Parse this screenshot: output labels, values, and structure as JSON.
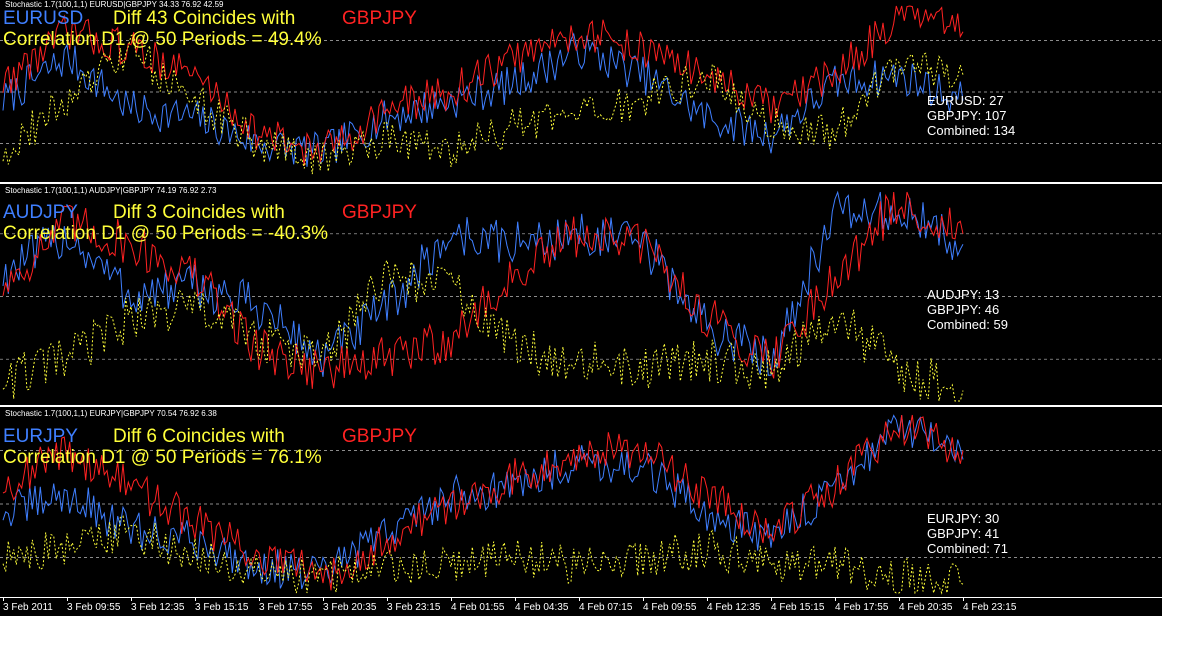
{
  "colors": {
    "base": "#3f7fff",
    "compare": "#ff2222",
    "diff": "#ffff3a",
    "grid": "#bbbbbb",
    "background": "#000000"
  },
  "panes": [
    {
      "indicator_title": "Stochastic 1.7(100,1,1) EURUSD|GBPJPY 34.33 76.92 42.59",
      "symbol": "EURUSD",
      "diff_text": "Diff 43 Coincides with",
      "compare_symbol": "GBPJPY",
      "correlation_text": "Correlation D1 @ 50 Periods = 49.4%",
      "stats": [
        "EURUSD: 27",
        "GBPJPY: 107",
        "Combined: 134"
      ]
    },
    {
      "indicator_title": "Stochastic 1.7(100,1,1) AUDJPY|GBPJPY 74.19 76.92 2.73",
      "symbol": "AUDJPY",
      "diff_text": "Diff 3 Coincides with",
      "compare_symbol": "GBPJPY",
      "correlation_text": "Correlation D1 @ 50 Periods = -40.3%",
      "stats": [
        "AUDJPY: 13",
        "GBPJPY: 46",
        "Combined: 59"
      ]
    },
    {
      "indicator_title": "Stochastic 1.7(100,1,1) EURJPY|GBPJPY 70.54 76.92 6.38",
      "symbol": "EURJPY",
      "diff_text": "Diff 6 Coincides with",
      "compare_symbol": "GBPJPY",
      "correlation_text": "Correlation D1 @ 50 Periods = 76.1%",
      "stats": [
        "EURJPY: 30",
        "GBPJPY: 41",
        "Combined: 71"
      ]
    }
  ],
  "chart_data": [
    {
      "type": "line",
      "x": [
        "3 Feb 2011",
        "3 Feb 09:55",
        "3 Feb 12:35",
        "3 Feb 15:15",
        "3 Feb 17:55",
        "3 Feb 20:35",
        "3 Feb 23:15",
        "4 Feb 01:55",
        "4 Feb 04:35",
        "4 Feb 07:15",
        "4 Feb 09:55",
        "4 Feb 12:35",
        "4 Feb 15:15",
        "4 Feb 17:55",
        "4 Feb 20:35",
        "4 Feb 23:15"
      ],
      "ylim": [
        0,
        100
      ],
      "series": [
        {
          "name": "EURUSD",
          "values": [
            45,
            70,
            40,
            35,
            20,
            15,
            35,
            45,
            55,
            75,
            60,
            35,
            25,
            55,
            60,
            45
          ]
        },
        {
          "name": "GBPJPY",
          "values": [
            55,
            85,
            75,
            60,
            25,
            15,
            40,
            50,
            70,
            85,
            75,
            60,
            40,
            60,
            95,
            85
          ]
        },
        {
          "name": "",
          "values": [
            15,
            45,
            75,
            45,
            20,
            10,
            25,
            15,
            30,
            35,
            45,
            60,
            30,
            25,
            70,
            60
          ]
        }
      ]
    },
    {
      "type": "line",
      "x": [
        "3 Feb 2011",
        "3 Feb 09:55",
        "3 Feb 12:35",
        "3 Feb 15:15",
        "3 Feb 17:55",
        "3 Feb 20:35",
        "3 Feb 23:15",
        "4 Feb 01:55",
        "4 Feb 04:35",
        "4 Feb 07:15",
        "4 Feb 09:55",
        "4 Feb 12:35",
        "4 Feb 15:15",
        "4 Feb 17:55",
        "4 Feb 20:35",
        "4 Feb 23:15"
      ],
      "ylim": [
        0,
        100
      ],
      "series": [
        {
          "name": "AUDJPY",
          "values": [
            60,
            80,
            50,
            55,
            45,
            20,
            45,
            80,
            75,
            80,
            75,
            35,
            20,
            90,
            90,
            75
          ]
        },
        {
          "name": "GBPJPY",
          "values": [
            55,
            85,
            75,
            60,
            25,
            15,
            20,
            30,
            60,
            80,
            75,
            40,
            20,
            60,
            95,
            80
          ]
        },
        {
          "name": "",
          "values": [
            10,
            20,
            40,
            45,
            30,
            20,
            60,
            55,
            25,
            20,
            15,
            20,
            15,
            40,
            15,
            5
          ]
        }
      ]
    },
    {
      "type": "line",
      "x": [
        "3 Feb 2011",
        "3 Feb 09:55",
        "3 Feb 12:35",
        "3 Feb 15:15",
        "3 Feb 17:55",
        "3 Feb 20:35",
        "3 Feb 23:15",
        "4 Feb 01:55",
        "4 Feb 04:35",
        "4 Feb 07:15",
        "4 Feb 09:55",
        "4 Feb 12:35",
        "4 Feb 15:15",
        "4 Feb 17:55",
        "4 Feb 20:35",
        "4 Feb 23:15"
      ],
      "ylim": [
        0,
        100
      ],
      "series": [
        {
          "name": "EURJPY",
          "values": [
            45,
            55,
            35,
            30,
            15,
            10,
            35,
            55,
            60,
            75,
            70,
            45,
            30,
            60,
            95,
            75
          ]
        },
        {
          "name": "GBPJPY",
          "values": [
            60,
            80,
            60,
            40,
            20,
            10,
            30,
            50,
            65,
            80,
            80,
            55,
            35,
            60,
            95,
            80
          ]
        },
        {
          "name": "",
          "values": [
            20,
            25,
            35,
            20,
            10,
            10,
            15,
            15,
            20,
            15,
            20,
            25,
            15,
            15,
            10,
            5
          ]
        }
      ]
    }
  ],
  "time_axis": [
    "3 Feb 2011",
    "3 Feb 09:55",
    "3 Feb 12:35",
    "3 Feb 15:15",
    "3 Feb 17:55",
    "3 Feb 20:35",
    "3 Feb 23:15",
    "4 Feb 01:55",
    "4 Feb 04:35",
    "4 Feb 07:15",
    "4 Feb 09:55",
    "4 Feb 12:35",
    "4 Feb 15:15",
    "4 Feb 17:55",
    "4 Feb 20:35",
    "4 Feb 23:15"
  ]
}
